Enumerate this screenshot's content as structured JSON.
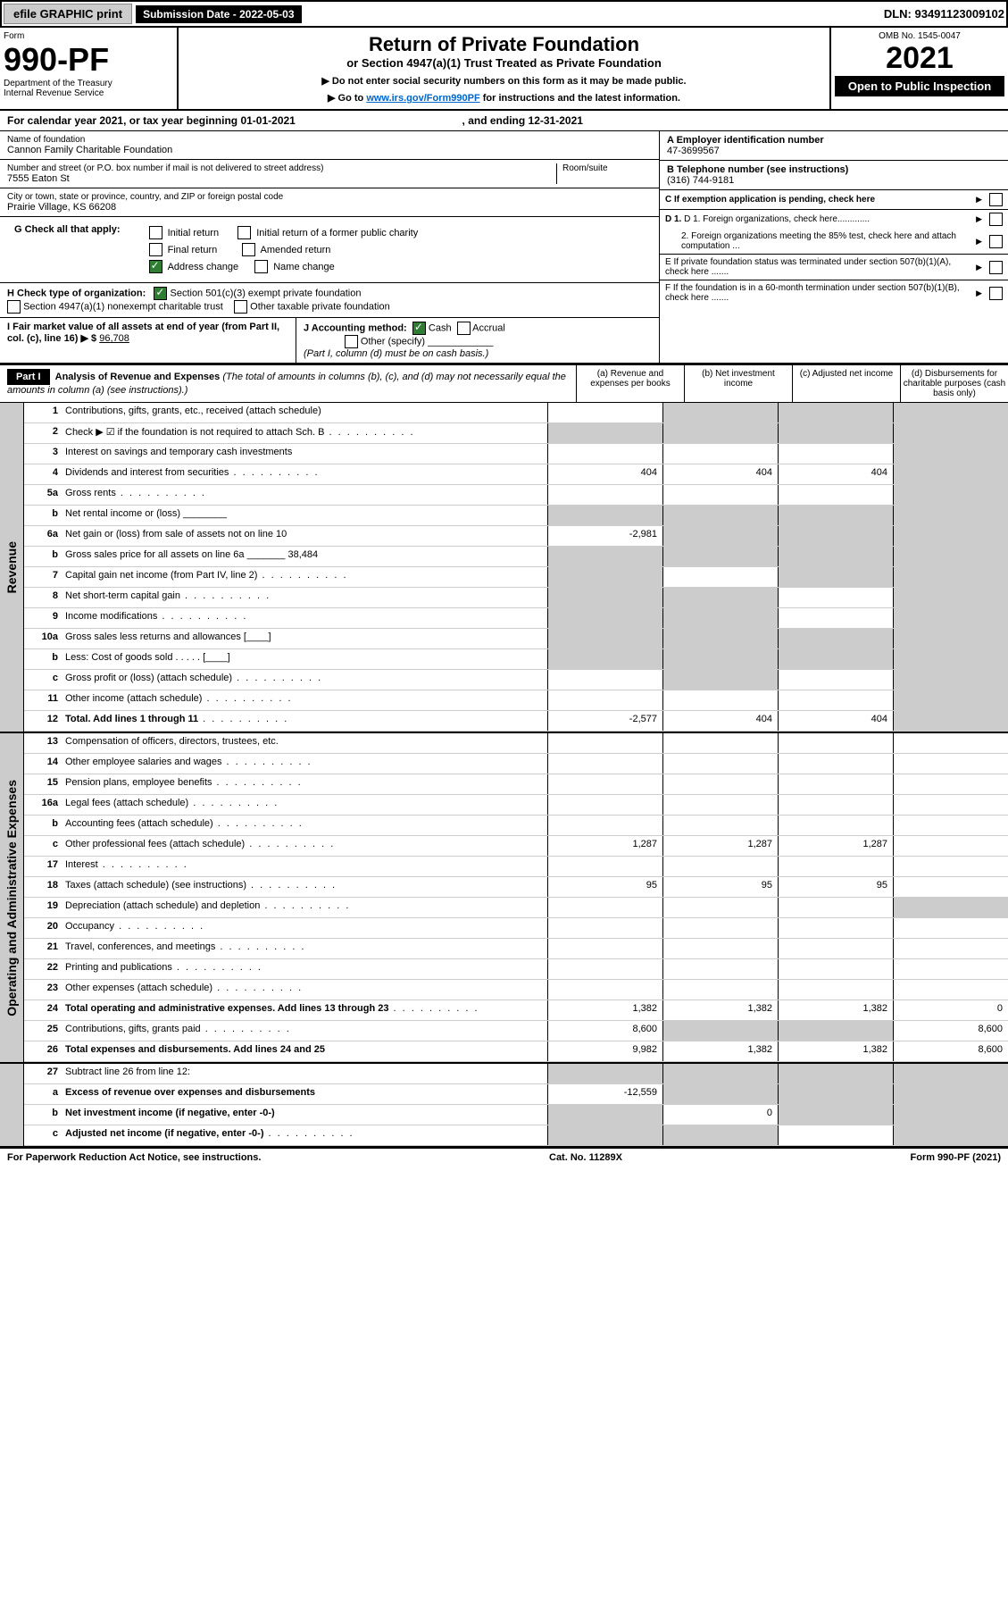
{
  "topbar": {
    "efile": "efile GRAPHIC print",
    "subdate_label": "Submission Date - ",
    "subdate": "2022-05-03",
    "dln_label": "DLN: ",
    "dln": "93491123009102"
  },
  "header": {
    "form_label": "Form",
    "form_num": "990-PF",
    "dept": "Department of the Treasury",
    "irs": "Internal Revenue Service",
    "title": "Return of Private Foundation",
    "subtitle": "or Section 4947(a)(1) Trust Treated as Private Foundation",
    "instr1": "▶ Do not enter social security numbers on this form as it may be made public.",
    "instr2_pre": "▶ Go to ",
    "instr2_link": "www.irs.gov/Form990PF",
    "instr2_post": " for instructions and the latest information.",
    "omb": "OMB No. 1545-0047",
    "year": "2021",
    "open": "Open to Public Inspection"
  },
  "ty": {
    "pre": "For calendar year 2021, or tax year beginning ",
    "begin": "01-01-2021",
    "mid": " , and ending ",
    "end": "12-31-2021"
  },
  "entity": {
    "name_label": "Name of foundation",
    "name": "Cannon Family Charitable Foundation",
    "addr_label": "Number and street (or P.O. box number if mail is not delivered to street address)",
    "addr": "7555 Eaton St",
    "room_label": "Room/suite",
    "city_label": "City or town, state or province, country, and ZIP or foreign postal code",
    "city": "Prairie Village, KS  66208",
    "a_label": "A Employer identification number",
    "ein": "47-3699567",
    "b_label": "B Telephone number (see instructions)",
    "phone": "(316) 744-9181",
    "c_label": "C If exemption application is pending, check here",
    "d1": "D 1. Foreign organizations, check here.............",
    "d2": "2. Foreign organizations meeting the 85% test, check here and attach computation ...",
    "e": "E  If private foundation status was terminated under section 507(b)(1)(A), check here .......",
    "f": "F  If the foundation is in a 60-month termination under section 507(b)(1)(B), check here .......",
    "g_label": "G Check all that apply:",
    "g_opts": [
      "Initial return",
      "Initial return of a former public charity",
      "Final return",
      "Amended return",
      "Address change",
      "Name change"
    ],
    "h_label": "H Check type of organization:",
    "h_opts": [
      "Section 501(c)(3) exempt private foundation",
      "Section 4947(a)(1) nonexempt charitable trust",
      "Other taxable private foundation"
    ],
    "i_label": "I Fair market value of all assets at end of year (from Part II, col. (c), line 16) ▶ $ ",
    "i_val": "96,708",
    "j_label": "J Accounting method:",
    "j_opts": [
      "Cash",
      "Accrual",
      "Other (specify)"
    ],
    "j_note": "(Part I, column (d) must be on cash basis.)"
  },
  "part1": {
    "label": "Part I",
    "title": "Analysis of Revenue and Expenses",
    "note": " (The total of amounts in columns (b), (c), and (d) may not necessarily equal the amounts in column (a) (see instructions).)",
    "cols": [
      "(a)  Revenue and expenses per books",
      "(b)  Net investment income",
      "(c)  Adjusted net income",
      "(d)  Disbursements for charitable purposes (cash basis only)"
    ]
  },
  "sides": {
    "rev": "Revenue",
    "exp": "Operating and Administrative Expenses"
  },
  "rows": [
    {
      "n": "1",
      "d": "Contributions, gifts, grants, etc., received (attach schedule)",
      "a": "",
      "b": "g",
      "c": "g",
      "dd": "g"
    },
    {
      "n": "2",
      "d": "Check ▶ ☑ if the foundation is not required to attach Sch. B",
      "a": "g",
      "b": "g",
      "c": "g",
      "dd": "g",
      "dots": true
    },
    {
      "n": "3",
      "d": "Interest on savings and temporary cash investments",
      "a": "",
      "b": "",
      "c": "",
      "dd": "g"
    },
    {
      "n": "4",
      "d": "Dividends and interest from securities",
      "a": "404",
      "b": "404",
      "c": "404",
      "dd": "g",
      "dots": true
    },
    {
      "n": "5a",
      "d": "Gross rents",
      "a": "",
      "b": "",
      "c": "",
      "dd": "g",
      "dots": true
    },
    {
      "n": "b",
      "d": "Net rental income or (loss)  ________",
      "a": "g",
      "b": "g",
      "c": "g",
      "dd": "g"
    },
    {
      "n": "6a",
      "d": "Net gain or (loss) from sale of assets not on line 10",
      "a": "-2,981",
      "b": "g",
      "c": "g",
      "dd": "g"
    },
    {
      "n": "b",
      "d": "Gross sales price for all assets on line 6a _______  38,484",
      "a": "g",
      "b": "g",
      "c": "g",
      "dd": "g"
    },
    {
      "n": "7",
      "d": "Capital gain net income (from Part IV, line 2)",
      "a": "g",
      "b": "",
      "c": "g",
      "dd": "g",
      "dots": true
    },
    {
      "n": "8",
      "d": "Net short-term capital gain",
      "a": "g",
      "b": "g",
      "c": "",
      "dd": "g",
      "dots": true
    },
    {
      "n": "9",
      "d": "Income modifications",
      "a": "g",
      "b": "g",
      "c": "",
      "dd": "g",
      "dots": true
    },
    {
      "n": "10a",
      "d": "Gross sales less returns and allowances    [____]",
      "a": "g",
      "b": "g",
      "c": "g",
      "dd": "g"
    },
    {
      "n": "b",
      "d": "Less: Cost of goods sold  .  .  .  .  .    [____]",
      "a": "g",
      "b": "g",
      "c": "g",
      "dd": "g"
    },
    {
      "n": "c",
      "d": "Gross profit or (loss) (attach schedule)",
      "a": "",
      "b": "g",
      "c": "",
      "dd": "g",
      "dots": true
    },
    {
      "n": "11",
      "d": "Other income (attach schedule)",
      "a": "",
      "b": "",
      "c": "",
      "dd": "g",
      "dots": true
    },
    {
      "n": "12",
      "d": "Total. Add lines 1 through 11",
      "a": "-2,577",
      "b": "404",
      "c": "404",
      "dd": "g",
      "bold": true,
      "dots": true
    }
  ],
  "rows2": [
    {
      "n": "13",
      "d": "Compensation of officers, directors, trustees, etc.",
      "a": "",
      "b": "",
      "c": "",
      "dd": ""
    },
    {
      "n": "14",
      "d": "Other employee salaries and wages",
      "a": "",
      "b": "",
      "c": "",
      "dd": "",
      "dots": true
    },
    {
      "n": "15",
      "d": "Pension plans, employee benefits",
      "a": "",
      "b": "",
      "c": "",
      "dd": "",
      "dots": true
    },
    {
      "n": "16a",
      "d": "Legal fees (attach schedule)",
      "a": "",
      "b": "",
      "c": "",
      "dd": "",
      "dots": true
    },
    {
      "n": "b",
      "d": "Accounting fees (attach schedule)",
      "a": "",
      "b": "",
      "c": "",
      "dd": "",
      "dots": true
    },
    {
      "n": "c",
      "d": "Other professional fees (attach schedule)",
      "a": "1,287",
      "b": "1,287",
      "c": "1,287",
      "dd": "",
      "dots": true
    },
    {
      "n": "17",
      "d": "Interest",
      "a": "",
      "b": "",
      "c": "",
      "dd": "",
      "dots": true
    },
    {
      "n": "18",
      "d": "Taxes (attach schedule) (see instructions)",
      "a": "95",
      "b": "95",
      "c": "95",
      "dd": "",
      "dots": true
    },
    {
      "n": "19",
      "d": "Depreciation (attach schedule) and depletion",
      "a": "",
      "b": "",
      "c": "",
      "dd": "g",
      "dots": true
    },
    {
      "n": "20",
      "d": "Occupancy",
      "a": "",
      "b": "",
      "c": "",
      "dd": "",
      "dots": true
    },
    {
      "n": "21",
      "d": "Travel, conferences, and meetings",
      "a": "",
      "b": "",
      "c": "",
      "dd": "",
      "dots": true
    },
    {
      "n": "22",
      "d": "Printing and publications",
      "a": "",
      "b": "",
      "c": "",
      "dd": "",
      "dots": true
    },
    {
      "n": "23",
      "d": "Other expenses (attach schedule)",
      "a": "",
      "b": "",
      "c": "",
      "dd": "",
      "dots": true
    },
    {
      "n": "24",
      "d": "Total operating and administrative expenses. Add lines 13 through 23",
      "a": "1,382",
      "b": "1,382",
      "c": "1,382",
      "dd": "0",
      "bold": true,
      "dots": true
    },
    {
      "n": "25",
      "d": "Contributions, gifts, grants paid",
      "a": "8,600",
      "b": "g",
      "c": "g",
      "dd": "8,600",
      "dots": true
    },
    {
      "n": "26",
      "d": "Total expenses and disbursements. Add lines 24 and 25",
      "a": "9,982",
      "b": "1,382",
      "c": "1,382",
      "dd": "8,600",
      "bold": true
    }
  ],
  "rows3": [
    {
      "n": "27",
      "d": "Subtract line 26 from line 12:",
      "a": "g",
      "b": "g",
      "c": "g",
      "dd": "g"
    },
    {
      "n": "a",
      "d": "Excess of revenue over expenses and disbursements",
      "a": "-12,559",
      "b": "g",
      "c": "g",
      "dd": "g",
      "bold": true
    },
    {
      "n": "b",
      "d": "Net investment income (if negative, enter -0-)",
      "a": "g",
      "b": "0",
      "c": "g",
      "dd": "g",
      "bold": true
    },
    {
      "n": "c",
      "d": "Adjusted net income (if negative, enter -0-)",
      "a": "g",
      "b": "g",
      "c": "",
      "dd": "g",
      "bold": true,
      "dots": true
    }
  ],
  "footer": {
    "left": "For Paperwork Reduction Act Notice, see instructions.",
    "mid": "Cat. No. 11289X",
    "right": "Form 990-PF (2021)"
  }
}
